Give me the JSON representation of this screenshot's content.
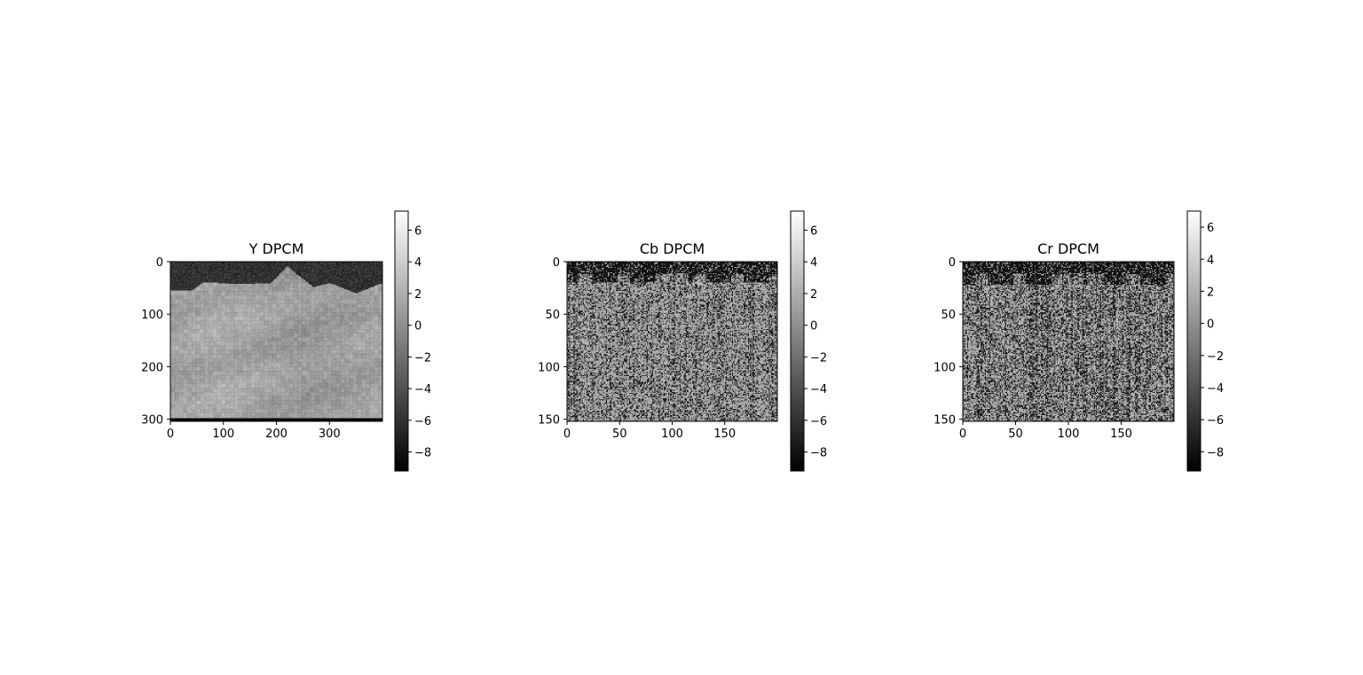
{
  "figure": {
    "background": "#ffffff",
    "colormap": "gray"
  },
  "chart_data": [
    {
      "type": "heatmap",
      "title": "Y DPCM",
      "xlabel": "",
      "ylabel": "",
      "image_shape": [
        304,
        400
      ],
      "xlim": [
        0,
        400
      ],
      "ylim": [
        304,
        0
      ],
      "x_ticks": [
        0,
        100,
        200,
        300
      ],
      "y_ticks": [
        0,
        100,
        200,
        300
      ],
      "colorbar": {
        "range": [
          -9.2,
          7.2
        ],
        "ticks": [
          -8,
          -6,
          -4,
          -2,
          0,
          2,
          4,
          6
        ],
        "tick_labels": [
          "−8",
          "−6",
          "−4",
          "−2",
          "0",
          "2",
          "4",
          "6"
        ]
      },
      "texture": {
        "background_value": 1.3,
        "noise": 1.2,
        "top_dark_value": -6.0,
        "bottom_band_value": -9.0,
        "block": 8,
        "ridge_x": [
          0,
          40,
          60,
          90,
          130,
          190,
          220,
          240,
          270,
          300,
          350,
          400
        ],
        "ridge_y": [
          55,
          55,
          40,
          40,
          42,
          40,
          8,
          25,
          48,
          40,
          60,
          40
        ]
      }
    },
    {
      "type": "heatmap",
      "title": "Cb DPCM",
      "xlabel": "",
      "ylabel": "",
      "image_shape": [
        152,
        200
      ],
      "xlim": [
        0,
        200
      ],
      "ylim": [
        152,
        0
      ],
      "x_ticks": [
        0,
        50,
        100,
        150
      ],
      "y_ticks": [
        0,
        50,
        100,
        150
      ],
      "colorbar": {
        "range": [
          -9.2,
          7.2
        ],
        "ticks": [
          -8,
          -6,
          -4,
          -2,
          0,
          2,
          4,
          6
        ],
        "tick_labels": [
          "−8",
          "−6",
          "−4",
          "−2",
          "0",
          "2",
          "4",
          "6"
        ]
      },
      "texture": {
        "background_value": 1.5,
        "dark_fraction": 0.28,
        "dark_value": -8.0,
        "top_dark_rows": 20
      }
    },
    {
      "type": "heatmap",
      "title": "Cr DPCM",
      "xlabel": "",
      "ylabel": "",
      "image_shape": [
        152,
        200
      ],
      "xlim": [
        0,
        200
      ],
      "ylim": [
        152,
        0
      ],
      "x_ticks": [
        0,
        50,
        100,
        150
      ],
      "y_ticks": [
        0,
        50,
        100,
        150
      ],
      "colorbar": {
        "range": [
          -9.2,
          7.0
        ],
        "ticks": [
          -8,
          -6,
          -4,
          -2,
          0,
          2,
          4,
          6
        ],
        "tick_labels": [
          "−8",
          "−6",
          "−4",
          "−2",
          "0",
          "2",
          "4",
          "6"
        ]
      },
      "texture": {
        "background_value": 1.5,
        "dark_fraction": 0.36,
        "dark_value": -8.0,
        "top_dark_rows": 22
      }
    }
  ]
}
